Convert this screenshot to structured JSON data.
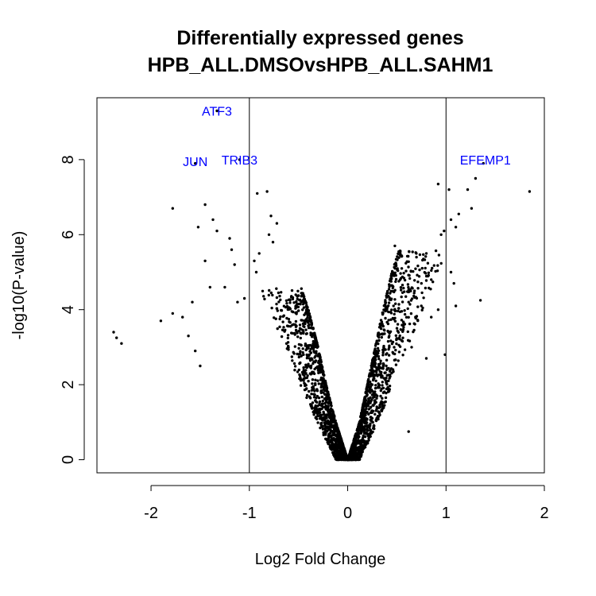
{
  "chart_data": {
    "type": "scatter",
    "title": "Differentially expressed genes",
    "subtitle": "HPB_ALL.DMSOvsHPB_ALL.SAHM1",
    "xlabel": "Log2 Fold Change",
    "ylabel": "-log10(P-value)",
    "xlim": [
      -2.55,
      2.0
    ],
    "ylim": [
      -0.35,
      9.65
    ],
    "xticks": [
      -2,
      -1,
      0,
      1,
      2
    ],
    "yticks": [
      0,
      2,
      4,
      6,
      8
    ],
    "threshold_lines_x": [
      -1,
      1
    ],
    "grid": false,
    "point_color": "#000000",
    "label_color": "#0000ff",
    "labeled_genes": [
      {
        "label": "ATF3",
        "x": -1.33,
        "y": 9.3
      },
      {
        "label": "JUN",
        "x": -1.55,
        "y": 7.95
      },
      {
        "label": "TRIB3",
        "x": -1.1,
        "y": 8.0
      },
      {
        "label": "EFEMP1",
        "x": 1.4,
        "y": 8.0
      }
    ],
    "outlier_points": [
      [
        -2.38,
        3.4
      ],
      [
        -2.35,
        3.25
      ],
      [
        -2.3,
        3.1
      ],
      [
        -1.9,
        3.7
      ],
      [
        -1.78,
        3.9
      ],
      [
        -1.68,
        3.8
      ],
      [
        -1.62,
        3.3
      ],
      [
        -1.55,
        2.9
      ],
      [
        -1.5,
        2.5
      ],
      [
        -1.78,
        6.7
      ],
      [
        -1.52,
        6.2
      ],
      [
        -1.45,
        6.8
      ],
      [
        -1.37,
        6.4
      ],
      [
        -1.33,
        6.1
      ],
      [
        -1.58,
        4.2
      ],
      [
        -1.4,
        4.6
      ],
      [
        -1.45,
        5.3
      ],
      [
        -1.2,
        5.9
      ],
      [
        -1.18,
        5.6
      ],
      [
        -1.15,
        5.2
      ],
      [
        -1.25,
        4.6
      ],
      [
        -1.12,
        4.2
      ],
      [
        -1.05,
        4.3
      ],
      [
        -0.92,
        7.1
      ],
      [
        -0.82,
        7.15
      ],
      [
        -0.78,
        6.5
      ],
      [
        -0.72,
        6.3
      ],
      [
        -0.76,
        5.8
      ],
      [
        -0.9,
        5.5
      ],
      [
        -0.95,
        5.3
      ],
      [
        -0.93,
        5.0
      ],
      [
        -0.8,
        6.0
      ],
      [
        -1.55,
        7.9
      ],
      [
        -1.33,
        9.3
      ],
      [
        -1.1,
        8.0
      ],
      [
        0.92,
        7.35
      ],
      [
        1.03,
        7.2
      ],
      [
        1.13,
        6.55
      ],
      [
        1.05,
        6.4
      ],
      [
        0.95,
        6.0
      ],
      [
        0.98,
        6.1
      ],
      [
        1.1,
        6.2
      ],
      [
        1.22,
        7.2
      ],
      [
        1.26,
        6.7
      ],
      [
        1.3,
        7.5
      ],
      [
        1.38,
        7.9
      ],
      [
        1.85,
        7.15
      ],
      [
        1.35,
        4.25
      ],
      [
        1.05,
        5.0
      ],
      [
        1.08,
        4.7
      ],
      [
        1.1,
        4.1
      ],
      [
        0.99,
        2.8
      ],
      [
        0.92,
        4.0
      ],
      [
        0.85,
        4.8
      ],
      [
        0.8,
        5.5
      ],
      [
        0.75,
        4.7
      ],
      [
        0.7,
        5.4
      ],
      [
        0.62,
        4.2
      ],
      [
        0.57,
        3.6
      ],
      [
        0.48,
        5.7
      ],
      [
        0.55,
        5.1
      ],
      [
        0.65,
        3.0
      ],
      [
        0.8,
        2.7
      ],
      [
        0.85,
        3.8
      ],
      [
        0.62,
        0.75
      ]
    ],
    "bulk_cloud": {
      "description": "dense volcano cloud of several thousand genes; lower bound of |log2FC| grows with -log10(P)",
      "left_envelope": [
        [
          0.0,
          0.0
        ],
        [
          -0.12,
          1.0
        ],
        [
          -0.22,
          2.0
        ],
        [
          -0.3,
          3.0
        ],
        [
          -0.4,
          4.0
        ],
        [
          -0.5,
          4.8
        ]
      ],
      "right_envelope": [
        [
          0.0,
          0.0
        ],
        [
          0.12,
          1.0
        ],
        [
          0.2,
          2.0
        ],
        [
          0.28,
          3.0
        ],
        [
          0.36,
          4.0
        ],
        [
          0.45,
          5.0
        ],
        [
          0.55,
          5.8
        ]
      ]
    }
  }
}
